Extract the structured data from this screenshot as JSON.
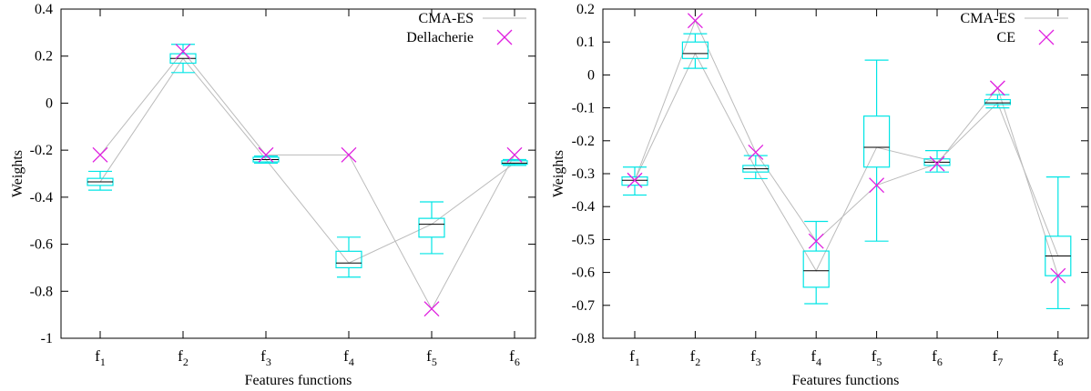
{
  "chart_data": [
    {
      "type": "box",
      "xlabel": "Features functions",
      "ylabel": "Weights",
      "ylim": [
        -1,
        0.4
      ],
      "yticks": [
        -1,
        -0.8,
        -0.6,
        -0.4,
        -0.2,
        0,
        0.2,
        0.4
      ],
      "ytick_labels": [
        "-1",
        "-0.8",
        "-0.6",
        "-0.4",
        "-0.2",
        "0",
        "0.2",
        "0.4"
      ],
      "categories": [
        {
          "base": "f",
          "sub": "1"
        },
        {
          "base": "f",
          "sub": "2"
        },
        {
          "base": "f",
          "sub": "3"
        },
        {
          "base": "f",
          "sub": "4"
        },
        {
          "base": "f",
          "sub": "5"
        },
        {
          "base": "f",
          "sub": "6"
        }
      ],
      "boxes": [
        {
          "min": -0.37,
          "q1": -0.35,
          "median": -0.335,
          "q3": -0.32,
          "max": -0.29
        },
        {
          "min": 0.13,
          "q1": 0.17,
          "median": 0.19,
          "q3": 0.21,
          "max": 0.25
        },
        {
          "min": -0.255,
          "q1": -0.25,
          "median": -0.24,
          "q3": -0.23,
          "max": -0.225
        },
        {
          "min": -0.74,
          "q1": -0.7,
          "median": -0.68,
          "q3": -0.63,
          "max": -0.57
        },
        {
          "min": -0.64,
          "q1": -0.57,
          "median": -0.515,
          "q3": -0.49,
          "max": -0.42
        },
        {
          "min": -0.265,
          "q1": -0.26,
          "median": -0.255,
          "q3": -0.245,
          "max": -0.24
        }
      ],
      "series": [
        {
          "name": "CMA-ES",
          "style": "line",
          "color": "#bbbbbb",
          "values": [
            -0.335,
            0.19,
            -0.24,
            -0.68,
            -0.515,
            -0.255
          ]
        },
        {
          "name": "Dellacherie",
          "style": "cross",
          "color": "#e020e0",
          "values": [
            -0.22,
            0.22,
            -0.22,
            -0.22,
            -0.875,
            -0.22
          ]
        }
      ],
      "legend": "top-right",
      "box_color": "#00e5e5",
      "median_color": "#000000",
      "grid": false
    },
    {
      "type": "box",
      "xlabel": "Features functions",
      "ylabel": "Weights",
      "ylim": [
        -0.8,
        0.2
      ],
      "yticks": [
        -0.8,
        -0.7,
        -0.6,
        -0.5,
        -0.4,
        -0.3,
        -0.2,
        -0.1,
        0,
        0.1,
        0.2
      ],
      "ytick_labels": [
        "-0.8",
        "-0.7",
        "-0.6",
        "-0.5",
        "-0.4",
        "-0.3",
        "-0.2",
        "-0.1",
        "0",
        "0.1",
        "0.2"
      ],
      "categories": [
        {
          "base": "f",
          "sub": "1"
        },
        {
          "base": "f",
          "sub": "2"
        },
        {
          "base": "f",
          "sub": "3"
        },
        {
          "base": "f",
          "sub": "4"
        },
        {
          "base": "f",
          "sub": "5"
        },
        {
          "base": "f",
          "sub": "6"
        },
        {
          "base": "f",
          "sub": "7"
        },
        {
          "base": "f",
          "sub": "8"
        }
      ],
      "boxes": [
        {
          "min": -0.365,
          "q1": -0.335,
          "median": -0.32,
          "q3": -0.31,
          "max": -0.28
        },
        {
          "min": 0.02,
          "q1": 0.05,
          "median": 0.065,
          "q3": 0.1,
          "max": 0.125
        },
        {
          "min": -0.315,
          "q1": -0.295,
          "median": -0.285,
          "q3": -0.275,
          "max": -0.245
        },
        {
          "min": -0.695,
          "q1": -0.645,
          "median": -0.595,
          "q3": -0.535,
          "max": -0.445
        },
        {
          "min": -0.505,
          "q1": -0.28,
          "median": -0.22,
          "q3": -0.125,
          "max": 0.045
        },
        {
          "min": -0.295,
          "q1": -0.275,
          "median": -0.265,
          "q3": -0.255,
          "max": -0.23
        },
        {
          "min": -0.1,
          "q1": -0.09,
          "median": -0.085,
          "q3": -0.075,
          "max": -0.06
        },
        {
          "min": -0.71,
          "q1": -0.61,
          "median": -0.55,
          "q3": -0.49,
          "max": -0.31
        }
      ],
      "series": [
        {
          "name": "CMA-ES",
          "style": "line",
          "color": "#bbbbbb",
          "values": [
            -0.32,
            0.065,
            -0.285,
            -0.595,
            -0.22,
            -0.265,
            -0.085,
            -0.55
          ]
        },
        {
          "name": "CE",
          "style": "cross",
          "color": "#e020e0",
          "values": [
            -0.32,
            0.165,
            -0.235,
            -0.505,
            -0.335,
            -0.27,
            -0.04,
            -0.61
          ]
        }
      ],
      "legend": "top-right",
      "box_color": "#00e5e5",
      "median_color": "#000000",
      "grid": false
    }
  ]
}
